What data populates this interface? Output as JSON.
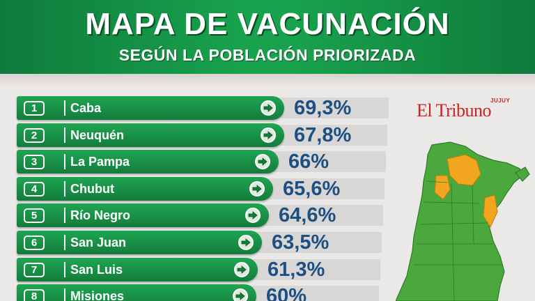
{
  "header": {
    "title": "MAPA DE VACUNACIÓN",
    "subtitle": "SEGÚN LA POBLACIÓN PRIORIZADA"
  },
  "logo": {
    "brand": "El Tribuno",
    "edition": "JUJUY"
  },
  "ranking": [
    {
      "rank": "1",
      "province": "Caba",
      "value": "69,3%"
    },
    {
      "rank": "2",
      "province": "Neuquén",
      "value": "67,8%"
    },
    {
      "rank": "3",
      "province": "La Pampa",
      "value": "66%"
    },
    {
      "rank": "4",
      "province": "Chubut",
      "value": "65,6%"
    },
    {
      "rank": "5",
      "province": "Río Negro",
      "value": "64,6%"
    },
    {
      "rank": "6",
      "province": "San Juan",
      "value": "63,5%"
    },
    {
      "rank": "7",
      "province": "San Luis",
      "value": "61,3%"
    },
    {
      "rank": "8",
      "province": "Misiones",
      "value": "60%"
    }
  ],
  "colors": {
    "header_green": "#18a24d",
    "bar_green": "#137c3b",
    "value_blue": "#1c4f82",
    "logo_red": "#cf1f1f",
    "map_green": "#4aa83c",
    "map_highlight": "#f2a51f"
  },
  "icons": {
    "row_arrow": "arrow-right-circle-icon"
  }
}
